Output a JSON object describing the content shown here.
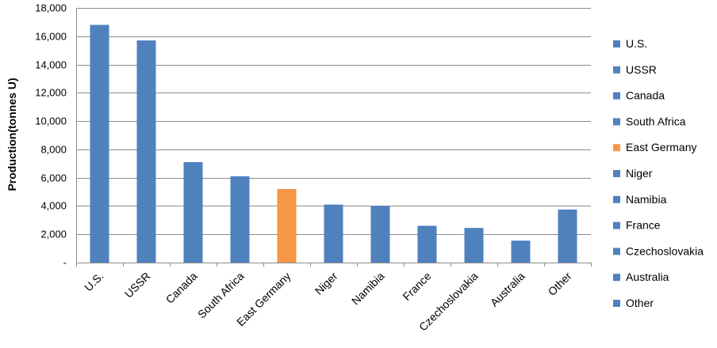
{
  "chart_data": {
    "type": "bar",
    "ylabel": "Production(tonnes U)",
    "xlabel": "",
    "title": "",
    "ylim": [
      0,
      18000
    ],
    "yticks": [
      0,
      2000,
      4000,
      6000,
      8000,
      10000,
      12000,
      14000,
      16000,
      18000
    ],
    "ytick_labels": [
      "-",
      "2,000",
      "4,000",
      "6,000",
      "8,000",
      "10,000",
      "12,000",
      "14,000",
      "16,000",
      "18,000"
    ],
    "categories": [
      "U.S.",
      "USSR",
      "Canada",
      "South Africa",
      "East Germany",
      "Niger",
      "Namibia",
      "France",
      "Czechoslovakia",
      "Australia",
      "Other"
    ],
    "values": [
      16800,
      15700,
      7100,
      6100,
      5200,
      4100,
      4000,
      2600,
      2450,
      1550,
      3750
    ],
    "colors": [
      "#4f81bd",
      "#4f81bd",
      "#4f81bd",
      "#4f81bd",
      "#f79646",
      "#4f81bd",
      "#4f81bd",
      "#4f81bd",
      "#4f81bd",
      "#4f81bd",
      "#4f81bd"
    ],
    "grid": true,
    "legend_position": "right"
  }
}
